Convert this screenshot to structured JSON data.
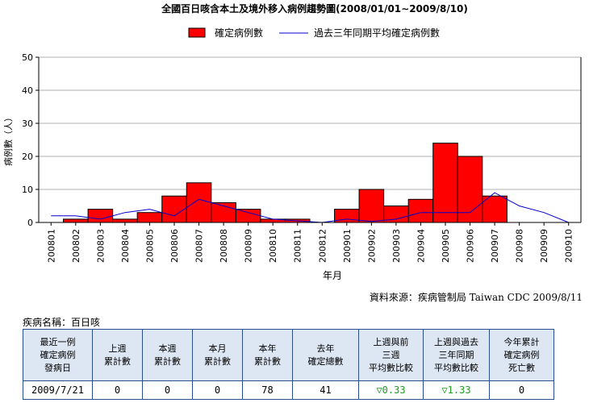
{
  "chart_data": {
    "type": "bar",
    "title": "全國百日咳含本土及境外移入病例趨勢圖(2008/01/01∼2009/8/10)",
    "xlabel": "年月",
    "ylabel": "病例數（人）",
    "ylim": [
      0,
      50
    ],
    "yticks": [
      0,
      10,
      20,
      30,
      40,
      50
    ],
    "grid": true,
    "legend_position": "top",
    "categories": [
      "200801",
      "200802",
      "200803",
      "200804",
      "200805",
      "200806",
      "200807",
      "200808",
      "200809",
      "200810",
      "200811",
      "200812",
      "200901",
      "200902",
      "200903",
      "200904",
      "200905",
      "200906",
      "200907",
      "200908",
      "200909",
      "200910"
    ],
    "x_tick_labels": [
      "200801",
      "200802",
      "200803",
      "200804",
      "200805",
      "200806",
      "200807",
      "200808",
      "200809",
      "200810",
      "200811",
      "200812",
      "200901",
      "200902",
      "200903",
      "200904",
      "200905",
      "200906",
      "200907",
      "200908",
      "200909",
      "200910"
    ],
    "series": [
      {
        "name": "確定病例數",
        "kind": "bar",
        "color": "#ff0000",
        "values": [
          0,
          1,
          4,
          1,
          3,
          8,
          12,
          6,
          4,
          1,
          1,
          0,
          4,
          10,
          5,
          7,
          24,
          20,
          8,
          0,
          0,
          0
        ]
      },
      {
        "name": "過去三年同期平均確定病例數",
        "kind": "line",
        "color": "#0000cc",
        "values": [
          2,
          2,
          1,
          3,
          4,
          2,
          7,
          5,
          3,
          1,
          0.5,
          0,
          1,
          0.3,
          1,
          3,
          3,
          3,
          9,
          5,
          3,
          0
        ]
      }
    ]
  },
  "source_note": "資料來源：疾病管制局 Taiwan CDC 2009/8/11",
  "disease_label": "疾病名稱：百日咳",
  "table": {
    "headers": [
      "最近一例\n確定病例\n發病日",
      "上週\n累計數",
      "本週\n累計數",
      "本月\n累計數",
      "本年\n累計數",
      "去年\n確定總數",
      "上週與前\n三週\n平均數比較",
      "上週與過去\n三年同期\n平均數比較",
      "今年累計\n確定病例\n死亡數"
    ],
    "values": [
      "2009/7/21",
      "0",
      "0",
      "0",
      "78",
      "41",
      "▽0.33",
      "▽1.33",
      "0"
    ]
  }
}
